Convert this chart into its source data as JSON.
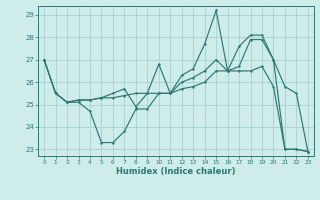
{
  "xlabel": "Humidex (Indice chaleur)",
  "bg_color": "#ceecea",
  "grid_color": "#aed4d2",
  "line_color": "#2d7873",
  "xlim": [
    -0.5,
    23.5
  ],
  "ylim": [
    22.7,
    29.4
  ],
  "yticks": [
    23,
    24,
    25,
    26,
    27,
    28,
    29
  ],
  "xticks": [
    0,
    1,
    2,
    3,
    4,
    5,
    6,
    7,
    8,
    9,
    10,
    11,
    12,
    13,
    14,
    15,
    16,
    17,
    18,
    19,
    20,
    21,
    22,
    23
  ],
  "line1_x": [
    0,
    1,
    2,
    3,
    4,
    5,
    6,
    7,
    8,
    9,
    10,
    11,
    12,
    13,
    14,
    15,
    16,
    17,
    18,
    19,
    20,
    21,
    22,
    23
  ],
  "line1_y": [
    27.0,
    25.5,
    25.1,
    25.1,
    24.7,
    23.3,
    23.3,
    23.8,
    24.8,
    24.8,
    25.5,
    25.5,
    26.0,
    26.2,
    26.5,
    27.0,
    26.5,
    26.5,
    26.5,
    26.7,
    25.8,
    23.0,
    23.0,
    22.9
  ],
  "line2_x": [
    0,
    1,
    2,
    3,
    4,
    5,
    6,
    7,
    8,
    9,
    10,
    11,
    12,
    13,
    14,
    15,
    16,
    17,
    18,
    19,
    20,
    21,
    22,
    23
  ],
  "line2_y": [
    27.0,
    25.5,
    25.1,
    25.2,
    25.2,
    25.3,
    25.3,
    25.4,
    25.5,
    25.5,
    25.5,
    25.5,
    25.7,
    25.8,
    26.0,
    26.5,
    26.5,
    26.7,
    27.9,
    27.9,
    27.0,
    25.8,
    25.5,
    22.9
  ],
  "line3_x": [
    0,
    1,
    2,
    3,
    4,
    5,
    6,
    7,
    8,
    9,
    10,
    11,
    12,
    13,
    14,
    15,
    16,
    17,
    18,
    19,
    20,
    21,
    22,
    23
  ],
  "line3_y": [
    27.0,
    25.5,
    25.1,
    25.2,
    25.2,
    25.3,
    25.5,
    25.7,
    24.9,
    25.5,
    26.8,
    25.5,
    26.3,
    26.6,
    27.7,
    29.2,
    26.5,
    27.6,
    28.1,
    28.1,
    27.0,
    23.0,
    23.0,
    22.9
  ]
}
